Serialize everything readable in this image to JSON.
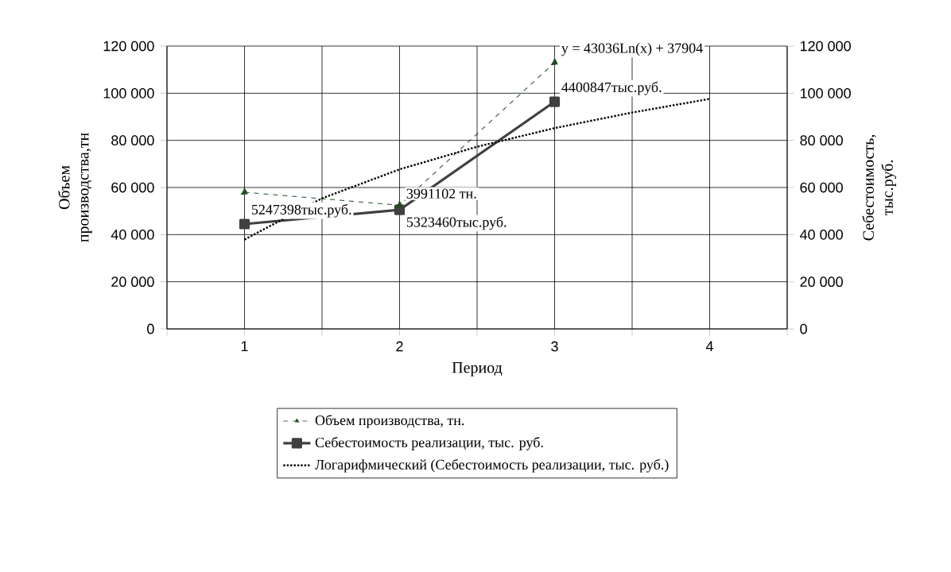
{
  "chart_data": {
    "type": "line",
    "xlabel": "Период",
    "ylabel": "Объем производства,тн",
    "y2label": "Себестоимость, тыс.руб.",
    "x": [
      1,
      2,
      3
    ],
    "series": [
      {
        "name": "Объем производства, тн.",
        "color": "#1f4d1f",
        "values": [
          58000,
          52500,
          113000
        ],
        "marker": "triangle",
        "line_style": "dashed"
      },
      {
        "name": "Себестоимость реализации, тыс. руб.",
        "color": "#404040",
        "values": [
          44500,
          50500,
          96400
        ],
        "marker": "square",
        "line_style": "solid",
        "axis": "y2"
      },
      {
        "name": "Логарифмический (Себестоимость реализации, тыс. руб.)",
        "color": "#000000",
        "type": "line",
        "x": [
          1,
          1.5,
          2,
          2.5,
          3,
          3.5,
          4
        ],
        "values": [
          37900,
          55400,
          67700,
          77300,
          85200,
          91800,
          97600
        ],
        "marker": "none",
        "line_style": "dotted",
        "axis": "y2"
      }
    ],
    "xlim": [
      0.5,
      4.5
    ],
    "xticks": [
      {
        "value": 0.5,
        "label": null
      },
      1,
      {
        "value": 1.5,
        "label": null
      },
      2,
      {
        "value": 2.5,
        "label": null
      },
      3,
      {
        "value": 3.5,
        "label": null
      },
      4,
      {
        "value": 4.5,
        "label": null
      }
    ],
    "ylim": [
      0,
      120000
    ],
    "yticks": [
      {
        "value": 0,
        "label": "0"
      },
      {
        "value": 20000,
        "label": "20 000"
      },
      {
        "value": 40000,
        "label": "40 000"
      },
      {
        "value": 60000,
        "label": "60 000"
      },
      {
        "value": 80000,
        "label": "80 000"
      },
      {
        "value": 100000,
        "label": "100 000"
      },
      {
        "value": 120000,
        "label": "120 000"
      }
    ],
    "y2lim": [
      0,
      120000
    ],
    "y2ticks": [
      {
        "value": 0,
        "label": "0"
      },
      {
        "value": 20000,
        "label": "20 000"
      },
      {
        "value": 40000,
        "label": "40 000"
      },
      {
        "value": 60000,
        "label": "60 000"
      },
      {
        "value": 80000,
        "label": "80 000"
      },
      {
        "value": 100000,
        "label": "100 000"
      },
      {
        "value": 120000,
        "label": "120 000"
      }
    ],
    "grid": true,
    "legend": "bottom",
    "annotations": [
      {
        "text": "y = 43036Ln(x) + 37904",
        "x": 3,
        "y": 113000
      },
      {
        "text": "4400847тыс.руб.",
        "x": 3,
        "y": 96400
      },
      {
        "text": "3991102 тн.",
        "x": 2,
        "y": 52500
      },
      {
        "text": "5323460тыс.руб.",
        "x": 2,
        "y": 50500
      },
      {
        "text": "5247398тыс.руб.",
        "x": 1,
        "y": 44500
      }
    ]
  }
}
